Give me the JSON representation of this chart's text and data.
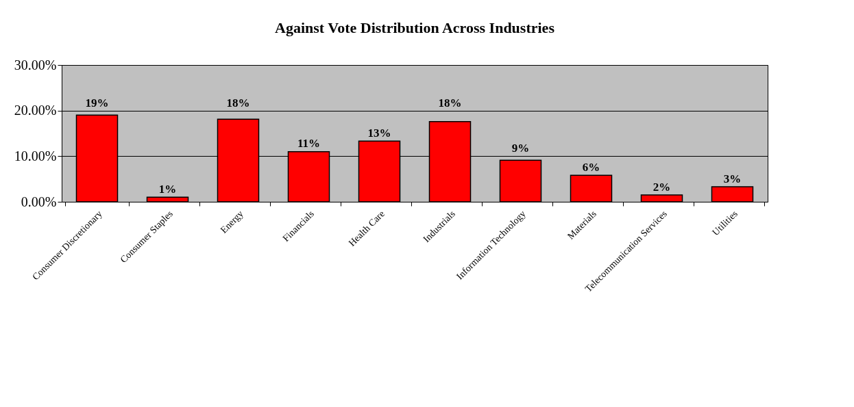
{
  "chart_data": {
    "type": "bar",
    "title": "Against Vote Distribution Across Industries",
    "categories": [
      "Consumer Discretionary",
      "Consumer Staples",
      "Energy",
      "Financials",
      "Health Care",
      "Industrials",
      "Information Technology",
      "Materials",
      "Telecommunication Services",
      "Utilities"
    ],
    "values": [
      0.19,
      0.01,
      0.181,
      0.11,
      0.133,
      0.176,
      0.091,
      0.058,
      0.015,
      0.033
    ],
    "value_labels": [
      "19%",
      "1%",
      "18%",
      "11%",
      "13%",
      "18%",
      "9%",
      "6%",
      "2%",
      "3%"
    ],
    "color": "#ff0000",
    "ylim": [
      0,
      0.3
    ],
    "yticks": [
      {
        "value": 0,
        "label": "0.00%"
      },
      {
        "value": 0.1,
        "label": "10.00%"
      },
      {
        "value": 0.2,
        "label": "20.00%"
      },
      {
        "value": 0.3,
        "label": "30.00%"
      }
    ],
    "grid": "y"
  }
}
